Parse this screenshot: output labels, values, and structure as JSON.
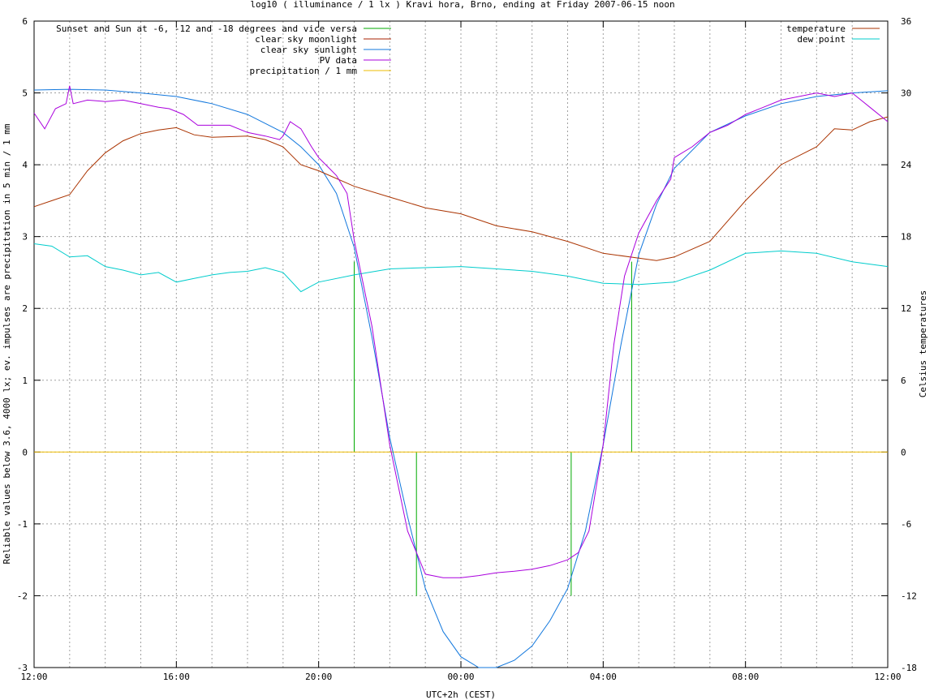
{
  "chart_data": {
    "type": "line",
    "title": "log10 ( illuminance / 1 lx ) Kravi hora, Brno, ending at Friday 2007-06-15 noon",
    "xlabel": "UTC+2h (CEST)",
    "ylabel": "Reliable values below 3.6, 4000 lx; ev. impulses are precipitation in 5 min / 1 mm",
    "y2label": "Celsius temperatures",
    "x_unit": "hours since 12:00 (Thursday)",
    "xlim": [
      0,
      24
    ],
    "ylim": [
      -3,
      6
    ],
    "y2lim": [
      -18,
      36
    ],
    "x_ticks": [
      {
        "x": 0,
        "label": "12:00"
      },
      {
        "x": 4,
        "label": "16:00"
      },
      {
        "x": 8,
        "label": "20:00"
      },
      {
        "x": 12,
        "label": "00:00"
      },
      {
        "x": 16,
        "label": "04:00"
      },
      {
        "x": 20,
        "label": "08:00"
      },
      {
        "x": 24,
        "label": "12:00"
      }
    ],
    "y_ticks": [
      -3,
      -2,
      -1,
      0,
      1,
      2,
      3,
      4,
      5,
      6
    ],
    "y2_ticks": [
      -18,
      -12,
      -6,
      0,
      6,
      12,
      18,
      24,
      30,
      36
    ],
    "grid": true,
    "legend_left": [
      {
        "name": "Sunset and Sun at -6, -12 and -18 degrees and vice versa",
        "color": "#00aa00"
      },
      {
        "name": "clear sky moonlight",
        "color": "#aa2200"
      },
      {
        "name": "clear sky sunlight",
        "color": "#1177dd"
      },
      {
        "name": "PV data",
        "color": "#aa00dd"
      },
      {
        "name": "precipitation / 1 mm",
        "color": "#eebb00"
      }
    ],
    "legend_right": [
      {
        "name": "temperature",
        "color": "#aa3300"
      },
      {
        "name": "dew point",
        "color": "#00cccc"
      }
    ],
    "series": [
      {
        "name": "Sunset and Sun at -6, -12 and -18 degrees and vice versa",
        "color": "#00aa00",
        "style": "impulses",
        "impulses": [
          [
            9.0,
            2.65
          ],
          [
            9.75,
            0.0
          ],
          [
            10.75,
            -2.0
          ],
          [
            15.1,
            -2.0
          ],
          [
            15.9,
            0.0
          ],
          [
            16.8,
            2.65
          ]
        ]
      },
      {
        "name": "clear sky sunlight",
        "color": "#1177dd",
        "axis": "y",
        "points": [
          [
            0,
            5.04
          ],
          [
            1,
            5.05
          ],
          [
            2,
            5.04
          ],
          [
            3,
            5.0
          ],
          [
            4,
            4.95
          ],
          [
            5,
            4.85
          ],
          [
            6,
            4.7
          ],
          [
            7,
            4.45
          ],
          [
            7.5,
            4.25
          ],
          [
            8,
            4.0
          ],
          [
            8.5,
            3.6
          ],
          [
            9,
            2.85
          ],
          [
            9.5,
            1.6
          ],
          [
            10,
            0.2
          ],
          [
            10.5,
            -0.9
          ],
          [
            11,
            -1.9
          ],
          [
            11.5,
            -2.5
          ],
          [
            12,
            -2.85
          ],
          [
            12.5,
            -3.0
          ],
          [
            13,
            -3.0
          ],
          [
            13.5,
            -2.9
          ],
          [
            14,
            -2.7
          ],
          [
            14.5,
            -2.35
          ],
          [
            15,
            -1.9
          ],
          [
            15.5,
            -1.1
          ],
          [
            16,
            0.1
          ],
          [
            16.5,
            1.5
          ],
          [
            17,
            2.75
          ],
          [
            17.5,
            3.45
          ],
          [
            18,
            3.95
          ],
          [
            19,
            4.45
          ],
          [
            20,
            4.68
          ],
          [
            21,
            4.85
          ],
          [
            22,
            4.95
          ],
          [
            23,
            5.0
          ],
          [
            24,
            5.03
          ]
        ]
      },
      {
        "name": "PV data",
        "color": "#aa00dd",
        "axis": "y",
        "points": [
          [
            0,
            4.72
          ],
          [
            0.3,
            4.5
          ],
          [
            0.6,
            4.78
          ],
          [
            0.9,
            4.85
          ],
          [
            1.0,
            5.1
          ],
          [
            1.1,
            4.85
          ],
          [
            1.5,
            4.9
          ],
          [
            2,
            4.88
          ],
          [
            2.5,
            4.9
          ],
          [
            3,
            4.85
          ],
          [
            3.5,
            4.8
          ],
          [
            3.8,
            4.78
          ],
          [
            4.2,
            4.7
          ],
          [
            4.6,
            4.55
          ],
          [
            5,
            4.55
          ],
          [
            5.5,
            4.55
          ],
          [
            6,
            4.45
          ],
          [
            6.5,
            4.4
          ],
          [
            6.9,
            4.35
          ],
          [
            7,
            4.4
          ],
          [
            7.2,
            4.6
          ],
          [
            7.5,
            4.5
          ],
          [
            7.8,
            4.25
          ],
          [
            8,
            4.1
          ],
          [
            8.3,
            3.95
          ],
          [
            8.5,
            3.85
          ],
          [
            8.8,
            3.6
          ],
          [
            9,
            2.95
          ],
          [
            9.5,
            1.75
          ],
          [
            10,
            0.1
          ],
          [
            10.5,
            -1.1
          ],
          [
            11,
            -1.7
          ],
          [
            11.5,
            -1.75
          ],
          [
            12,
            -1.75
          ],
          [
            12.5,
            -1.72
          ],
          [
            13,
            -1.68
          ],
          [
            13.5,
            -1.66
          ],
          [
            14,
            -1.63
          ],
          [
            14.5,
            -1.58
          ],
          [
            15,
            -1.5
          ],
          [
            15.3,
            -1.4
          ],
          [
            15.6,
            -1.1
          ],
          [
            16,
            0.1
          ],
          [
            16.3,
            1.5
          ],
          [
            16.6,
            2.45
          ],
          [
            17,
            3.05
          ],
          [
            17.5,
            3.5
          ],
          [
            17.9,
            3.8
          ],
          [
            18,
            4.1
          ],
          [
            18.5,
            4.25
          ],
          [
            19,
            4.45
          ],
          [
            19.5,
            4.55
          ],
          [
            20,
            4.7
          ],
          [
            20.5,
            4.8
          ],
          [
            21,
            4.9
          ],
          [
            21.5,
            4.95
          ],
          [
            22,
            5.0
          ],
          [
            22.5,
            4.95
          ],
          [
            23,
            5.0
          ],
          [
            23.5,
            4.8
          ],
          [
            24,
            4.6
          ]
        ]
      },
      {
        "name": "temperature",
        "color": "#aa3300",
        "axis": "y2",
        "points": [
          [
            0,
            20.5
          ],
          [
            0.5,
            21
          ],
          [
            1,
            21.5
          ],
          [
            1.5,
            23.5
          ],
          [
            2,
            25
          ],
          [
            2.5,
            26
          ],
          [
            3,
            26.6
          ],
          [
            3.5,
            26.9
          ],
          [
            4,
            27.1
          ],
          [
            4.5,
            26.5
          ],
          [
            5,
            26.3
          ],
          [
            6,
            26.4
          ],
          [
            6.5,
            26.1
          ],
          [
            7,
            25.5
          ],
          [
            7.5,
            24
          ],
          [
            8,
            23.5
          ],
          [
            9,
            22.2
          ],
          [
            10,
            21.3
          ],
          [
            11,
            20.4
          ],
          [
            12,
            19.9
          ],
          [
            13,
            18.9
          ],
          [
            14,
            18.4
          ],
          [
            15,
            17.6
          ],
          [
            16,
            16.6
          ],
          [
            17,
            16.2
          ],
          [
            17.5,
            16.0
          ],
          [
            18,
            16.3
          ],
          [
            19,
            17.6
          ],
          [
            20,
            21
          ],
          [
            21,
            24
          ],
          [
            22,
            25.5
          ],
          [
            22.5,
            27
          ],
          [
            23,
            26.9
          ],
          [
            23.5,
            27.6
          ],
          [
            24,
            28
          ]
        ]
      },
      {
        "name": "dew point",
        "color": "#00cccc",
        "axis": "y2",
        "points": [
          [
            0,
            17.4
          ],
          [
            0.5,
            17.2
          ],
          [
            1,
            16.3
          ],
          [
            1.5,
            16.4
          ],
          [
            2,
            15.5
          ],
          [
            2.5,
            15.2
          ],
          [
            3,
            14.8
          ],
          [
            3.5,
            15.0
          ],
          [
            4,
            14.2
          ],
          [
            4.5,
            14.5
          ],
          [
            5,
            14.8
          ],
          [
            5.5,
            15.0
          ],
          [
            6,
            15.1
          ],
          [
            6.5,
            15.4
          ],
          [
            7,
            15.0
          ],
          [
            7.5,
            13.4
          ],
          [
            8,
            14.2
          ],
          [
            9,
            14.8
          ],
          [
            10,
            15.3
          ],
          [
            11,
            15.4
          ],
          [
            12,
            15.5
          ],
          [
            13,
            15.3
          ],
          [
            14,
            15.1
          ],
          [
            15,
            14.7
          ],
          [
            16,
            14.1
          ],
          [
            17,
            14.0
          ],
          [
            18,
            14.2
          ],
          [
            19,
            15.2
          ],
          [
            20,
            16.6
          ],
          [
            21,
            16.8
          ],
          [
            22,
            16.6
          ],
          [
            23,
            15.9
          ],
          [
            24,
            15.5
          ]
        ]
      },
      {
        "name": "precipitation / 1 mm",
        "color": "#eebb00",
        "axis": "y",
        "points": [
          [
            0,
            0
          ],
          [
            24,
            0
          ]
        ]
      }
    ]
  }
}
